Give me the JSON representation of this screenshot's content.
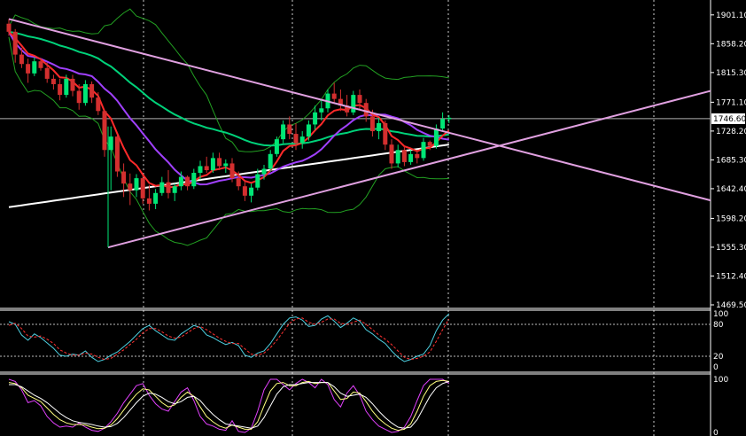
{
  "chart_data": [
    {
      "type": "candlestick",
      "panel": "price",
      "y_ticks": [
        "1901.10",
        "1858.20",
        "1815.30",
        "1771.10",
        "1728.20",
        "1685.30",
        "1642.40",
        "1598.20",
        "1555.30",
        "1512.40",
        "1469.50"
      ],
      "ylim": [
        1469.5,
        1918
      ],
      "current_price": "1746.60",
      "grid": "dotted vertical",
      "colors": {
        "bull": "#00e676",
        "bear": "#d32f2f",
        "ma_fast": "#ff2a2a",
        "ma_mid": "#a040ff",
        "ma_slow": "#00d27a",
        "ma_long": "#ffffff",
        "bands": "#22a022",
        "trendline": "#e0a0e0"
      },
      "candles": [
        [
          1888,
          1895,
          1870,
          1876
        ],
        [
          1876,
          1880,
          1830,
          1842
        ],
        [
          1842,
          1852,
          1822,
          1828
        ],
        [
          1828,
          1836,
          1800,
          1814
        ],
        [
          1814,
          1838,
          1810,
          1832
        ],
        [
          1832,
          1836,
          1818,
          1822
        ],
        [
          1822,
          1830,
          1800,
          1806
        ],
        [
          1806,
          1812,
          1790,
          1798
        ],
        [
          1798,
          1806,
          1774,
          1782
        ],
        [
          1782,
          1812,
          1778,
          1806
        ],
        [
          1806,
          1812,
          1780,
          1788
        ],
        [
          1788,
          1798,
          1760,
          1770
        ],
        [
          1770,
          1804,
          1766,
          1798
        ],
        [
          1798,
          1802,
          1770,
          1778
        ],
        [
          1778,
          1786,
          1752,
          1758
        ],
        [
          1758,
          1760,
          1690,
          1700
        ],
        [
          1700,
          1735,
          1640,
          1720
        ],
        [
          1720,
          1722,
          1660,
          1668
        ],
        [
          1668,
          1680,
          1630,
          1650
        ],
        [
          1650,
          1665,
          1618,
          1640
        ],
        [
          1640,
          1664,
          1630,
          1658
        ],
        [
          1658,
          1662,
          1620,
          1628
        ],
        [
          1628,
          1648,
          1610,
          1620
        ],
        [
          1620,
          1642,
          1612,
          1636
        ],
        [
          1636,
          1660,
          1632,
          1652
        ],
        [
          1652,
          1670,
          1628,
          1636
        ],
        [
          1636,
          1650,
          1624,
          1646
        ],
        [
          1646,
          1668,
          1640,
          1660
        ],
        [
          1660,
          1662,
          1640,
          1646
        ],
        [
          1646,
          1672,
          1642,
          1666
        ],
        [
          1666,
          1684,
          1656,
          1676
        ],
        [
          1676,
          1690,
          1666,
          1670
        ],
        [
          1670,
          1696,
          1666,
          1688
        ],
        [
          1688,
          1696,
          1670,
          1676
        ],
        [
          1676,
          1686,
          1666,
          1680
        ],
        [
          1680,
          1688,
          1652,
          1658
        ],
        [
          1658,
          1668,
          1640,
          1646
        ],
        [
          1646,
          1654,
          1624,
          1632
        ],
        [
          1632,
          1650,
          1622,
          1644
        ],
        [
          1644,
          1672,
          1640,
          1664
        ],
        [
          1664,
          1678,
          1656,
          1672
        ],
        [
          1672,
          1700,
          1668,
          1694
        ],
        [
          1694,
          1720,
          1690,
          1716
        ],
        [
          1716,
          1744,
          1710,
          1738
        ],
        [
          1738,
          1750,
          1716,
          1724
        ],
        [
          1724,
          1740,
          1700,
          1710
        ],
        [
          1710,
          1728,
          1702,
          1720
        ],
        [
          1720,
          1744,
          1714,
          1738
        ],
        [
          1738,
          1766,
          1730,
          1756
        ],
        [
          1756,
          1774,
          1744,
          1762
        ],
        [
          1762,
          1790,
          1756,
          1784
        ],
        [
          1784,
          1800,
          1770,
          1776
        ],
        [
          1776,
          1790,
          1758,
          1766
        ],
        [
          1766,
          1782,
          1750,
          1756
        ],
        [
          1756,
          1788,
          1752,
          1782
        ],
        [
          1782,
          1790,
          1760,
          1770
        ],
        [
          1770,
          1776,
          1742,
          1750
        ],
        [
          1750,
          1760,
          1720,
          1728
        ],
        [
          1728,
          1748,
          1716,
          1740
        ],
        [
          1740,
          1744,
          1700,
          1708
        ],
        [
          1708,
          1716,
          1672,
          1680
        ],
        [
          1680,
          1708,
          1674,
          1700
        ],
        [
          1700,
          1706,
          1676,
          1682
        ],
        [
          1682,
          1700,
          1678,
          1694
        ],
        [
          1694,
          1698,
          1680,
          1688
        ],
        [
          1688,
          1718,
          1684,
          1712
        ],
        [
          1712,
          1714,
          1700,
          1706
        ],
        [
          1706,
          1738,
          1702,
          1732
        ],
        [
          1732,
          1756,
          1728,
          1746
        ],
        [
          1746,
          1752,
          1740,
          1748
        ]
      ]
    },
    {
      "type": "line",
      "panel": "oscillator_1",
      "y_ticks": [
        "100",
        "80",
        "20",
        "0"
      ],
      "ylim": [
        0,
        100
      ],
      "levels": [
        80,
        20
      ],
      "series": [
        {
          "color": "#4dd0e1",
          "values": [
            85,
            80,
            60,
            50,
            62,
            55,
            45,
            35,
            22,
            20,
            24,
            22,
            30,
            18,
            10,
            14,
            22,
            28,
            38,
            48,
            60,
            72,
            78,
            68,
            60,
            52,
            50,
            62,
            70,
            78,
            74,
            60,
            55,
            48,
            42,
            46,
            40,
            22,
            18,
            26,
            30,
            44,
            62,
            80,
            92,
            94,
            88,
            76,
            78,
            90,
            96,
            86,
            74,
            82,
            92,
            86,
            70,
            62,
            52,
            44,
            30,
            18,
            10,
            14,
            20,
            24,
            40,
            68,
            88,
            100
          ]
        },
        {
          "color": "#ff3030",
          "dashed": true,
          "values": [
            78,
            82,
            72,
            58,
            56,
            58,
            52,
            44,
            32,
            26,
            22,
            22,
            26,
            24,
            18,
            14,
            16,
            24,
            32,
            42,
            52,
            64,
            72,
            72,
            66,
            58,
            54,
            56,
            64,
            72,
            76,
            70,
            62,
            54,
            48,
            44,
            44,
            34,
            24,
            22,
            26,
            36,
            50,
            66,
            82,
            90,
            92,
            84,
            80,
            84,
            90,
            90,
            82,
            80,
            84,
            88,
            80,
            70,
            60,
            52,
            42,
            30,
            18,
            14,
            16,
            20,
            28,
            48,
            70,
            90
          ]
        }
      ]
    },
    {
      "type": "line",
      "panel": "oscillator_2",
      "y_ticks": [
        "100",
        "0"
      ],
      "ylim": [
        0,
        100
      ],
      "series": [
        {
          "color": "#e040fb",
          "values": [
            100,
            96,
            80,
            56,
            60,
            50,
            30,
            18,
            10,
            12,
            10,
            18,
            10,
            4,
            2,
            8,
            20,
            36,
            56,
            72,
            88,
            92,
            70,
            54,
            44,
            40,
            58,
            76,
            84,
            60,
            30,
            16,
            12,
            6,
            4,
            22,
            2,
            0,
            8,
            40,
            80,
            100,
            100,
            90,
            80,
            92,
            100,
            94,
            84,
            100,
            90,
            62,
            48,
            74,
            88,
            70,
            40,
            24,
            12,
            6,
            0,
            2,
            10,
            30,
            60,
            88,
            100,
            100,
            100,
            92
          ]
        },
        {
          "color": "#ffff80",
          "values": [
            94,
            92,
            84,
            70,
            64,
            58,
            46,
            34,
            24,
            18,
            15,
            15,
            14,
            10,
            7,
            8,
            14,
            26,
            42,
            58,
            72,
            82,
            80,
            68,
            56,
            48,
            52,
            66,
            76,
            68,
            48,
            30,
            20,
            12,
            8,
            14,
            10,
            6,
            6,
            20,
            50,
            78,
            92,
            94,
            88,
            88,
            94,
            96,
            92,
            94,
            94,
            78,
            62,
            64,
            76,
            74,
            58,
            40,
            26,
            16,
            8,
            4,
            6,
            16,
            40,
            68,
            88,
            96,
            98,
            96
          ]
        },
        {
          "color": "#ffffff",
          "values": [
            90,
            90,
            86,
            78,
            70,
            64,
            56,
            46,
            36,
            28,
            22,
            19,
            17,
            15,
            12,
            10,
            11,
            17,
            28,
            42,
            56,
            68,
            74,
            72,
            66,
            58,
            54,
            58,
            66,
            68,
            60,
            46,
            34,
            24,
            16,
            14,
            12,
            10,
            8,
            12,
            28,
            50,
            72,
            86,
            90,
            90,
            92,
            94,
            94,
            94,
            94,
            86,
            74,
            68,
            70,
            72,
            66,
            54,
            40,
            28,
            18,
            10,
            8,
            10,
            24,
            46,
            68,
            84,
            92,
            96
          ]
        }
      ]
    }
  ]
}
